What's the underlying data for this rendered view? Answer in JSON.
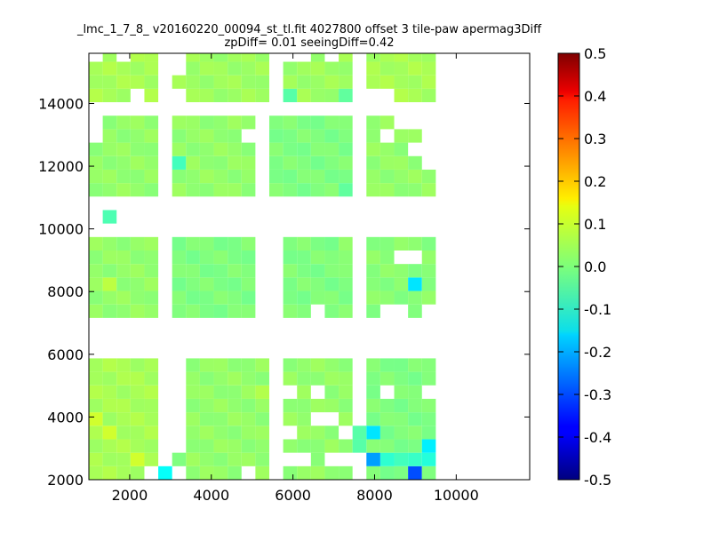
{
  "chart_data": {
    "type": "heatmap",
    "title": "_lmc_1_7_8_ v20160220_00094_st_tl.fit 4027800 offset 3 tile-paw apermag3Diff",
    "subtitle": "zpDiff= 0.01 seeingDiff=0.42",
    "xlabel": "",
    "ylabel": "",
    "xlim": [
      1000,
      11800
    ],
    "ylim": [
      2000,
      15600
    ],
    "x_ticks": [
      2000,
      4000,
      6000,
      8000,
      10000
    ],
    "y_ticks": [
      2000,
      4000,
      6000,
      8000,
      10000,
      12000,
      14000
    ],
    "colorbar": {
      "colormap": "jet",
      "range": [
        -0.5,
        0.5
      ],
      "ticks": [
        "0.5",
        "0.4",
        "0.3",
        "0.2",
        "0.1",
        "0.0",
        "-0.1",
        "-0.2",
        "-0.3",
        "-0.4",
        "-0.5"
      ]
    },
    "cell_size": [
      340,
      430
    ],
    "x_origin": 1000,
    "y_origin": 2000,
    "blocks": [
      {
        "cols": [
          0,
          4
        ],
        "rows": [
          0,
          8
        ],
        "value": 0.04
      },
      {
        "cols": [
          7,
          12
        ],
        "rows": [
          0,
          8
        ],
        "value": 0.02
      },
      {
        "cols": [
          14,
          18
        ],
        "rows": [
          0,
          8
        ],
        "value": 0.02
      },
      {
        "cols": [
          20,
          24
        ],
        "rows": [
          0,
          8
        ],
        "value": 0.0
      },
      {
        "cols": [
          0,
          4
        ],
        "rows": [
          12,
          17
        ],
        "value": 0.02
      },
      {
        "cols": [
          6,
          11
        ],
        "rows": [
          12,
          17
        ],
        "value": 0.0
      },
      {
        "cols": [
          14,
          18
        ],
        "rows": [
          12,
          17
        ],
        "value": 0.0
      },
      {
        "cols": [
          20,
          24
        ],
        "rows": [
          12,
          17
        ],
        "value": 0.01
      },
      {
        "cols": [
          0,
          4
        ],
        "rows": [
          21,
          26
        ],
        "value": 0.02
      },
      {
        "cols": [
          6,
          11
        ],
        "rows": [
          21,
          26
        ],
        "value": 0.02
      },
      {
        "cols": [
          13,
          18
        ],
        "rows": [
          21,
          26
        ],
        "value": 0.0
      },
      {
        "cols": [
          20,
          24
        ],
        "rows": [
          21,
          26
        ],
        "value": 0.02
      },
      {
        "cols": [
          0,
          4
        ],
        "rows": [
          28,
          31
        ],
        "value": 0.04
      },
      {
        "cols": [
          7,
          12
        ],
        "rows": [
          28,
          31
        ],
        "value": 0.03
      },
      {
        "cols": [
          14,
          18
        ],
        "rows": [
          28,
          31
        ],
        "value": 0.03
      },
      {
        "cols": [
          20,
          24
        ],
        "rows": [
          28,
          31
        ],
        "value": 0.04
      }
    ],
    "empty_cells": [
      [
        4,
        0
      ],
      [
        6,
        0
      ],
      [
        11,
        0
      ],
      [
        5,
        1
      ],
      [
        14,
        1
      ],
      [
        15,
        1
      ],
      [
        17,
        1
      ],
      [
        18,
        1
      ],
      [
        14,
        3
      ],
      [
        18,
        3
      ],
      [
        5,
        4
      ],
      [
        16,
        4
      ],
      [
        17,
        4
      ],
      [
        14,
        6
      ],
      [
        16,
        6
      ],
      [
        21,
        6
      ],
      [
        24,
        6
      ],
      [
        16,
        12
      ],
      [
        21,
        12
      ],
      [
        22,
        12
      ],
      [
        24,
        12
      ],
      [
        19,
        14
      ],
      [
        22,
        16
      ],
      [
        23,
        16
      ],
      [
        11,
        25
      ],
      [
        0,
        26
      ],
      [
        0,
        25
      ],
      [
        21,
        25
      ],
      [
        24,
        25
      ],
      [
        24,
        24
      ],
      [
        23,
        24
      ],
      [
        24,
        23
      ],
      [
        22,
        26
      ],
      [
        23,
        26
      ],
      [
        24,
        26
      ],
      [
        2,
        19
      ],
      [
        3,
        28
      ],
      [
        5,
        31
      ],
      [
        14,
        31
      ],
      [
        15,
        31
      ],
      [
        17,
        31
      ],
      [
        0,
        31
      ],
      [
        2,
        31
      ],
      [
        20,
        28
      ],
      [
        21,
        28
      ]
    ],
    "extra_cells": [
      {
        "col": 5,
        "row": 0,
        "value": -0.12
      },
      {
        "col": 1,
        "row": 19,
        "value": -0.05
      },
      {
        "col": 3,
        "row": 1,
        "value": 0.08
      },
      {
        "col": 6,
        "row": 23,
        "value": -0.06
      },
      {
        "col": 6,
        "row": 1,
        "value": 0.0
      },
      {
        "col": 16,
        "row": 2,
        "value": 0.01
      },
      {
        "col": 19,
        "row": 3,
        "value": -0.04
      },
      {
        "col": 19,
        "row": 2,
        "value": -0.04
      },
      {
        "col": 12,
        "row": 6,
        "value": 0.05
      },
      {
        "col": 6,
        "row": 29,
        "value": 0.04
      },
      {
        "col": 14,
        "row": 28,
        "value": -0.04
      },
      {
        "col": 18,
        "row": 28,
        "value": -0.03
      },
      {
        "col": 18,
        "row": 21,
        "value": -0.03
      },
      {
        "col": 18,
        "row": 16,
        "value": 0.01
      },
      {
        "col": 18,
        "row": 17,
        "value": 0.02
      }
    ],
    "highlight_cells": [
      {
        "col": 21,
        "row": 1,
        "value": -0.08
      },
      {
        "col": 22,
        "row": 1,
        "value": -0.06
      },
      {
        "col": 23,
        "row": 1,
        "value": -0.07
      },
      {
        "col": 24,
        "row": 1,
        "value": -0.09
      },
      {
        "col": 24,
        "row": 2,
        "value": -0.14
      },
      {
        "col": 20,
        "row": 1,
        "value": -0.22
      },
      {
        "col": 23,
        "row": 0,
        "value": -0.3
      },
      {
        "col": 20,
        "row": 3,
        "value": -0.15
      },
      {
        "col": 23,
        "row": 14,
        "value": -0.15
      },
      {
        "col": 0,
        "row": 4,
        "value": 0.08
      },
      {
        "col": 1,
        "row": 3,
        "value": 0.08
      },
      {
        "col": 1,
        "row": 14,
        "value": 0.06
      }
    ]
  }
}
